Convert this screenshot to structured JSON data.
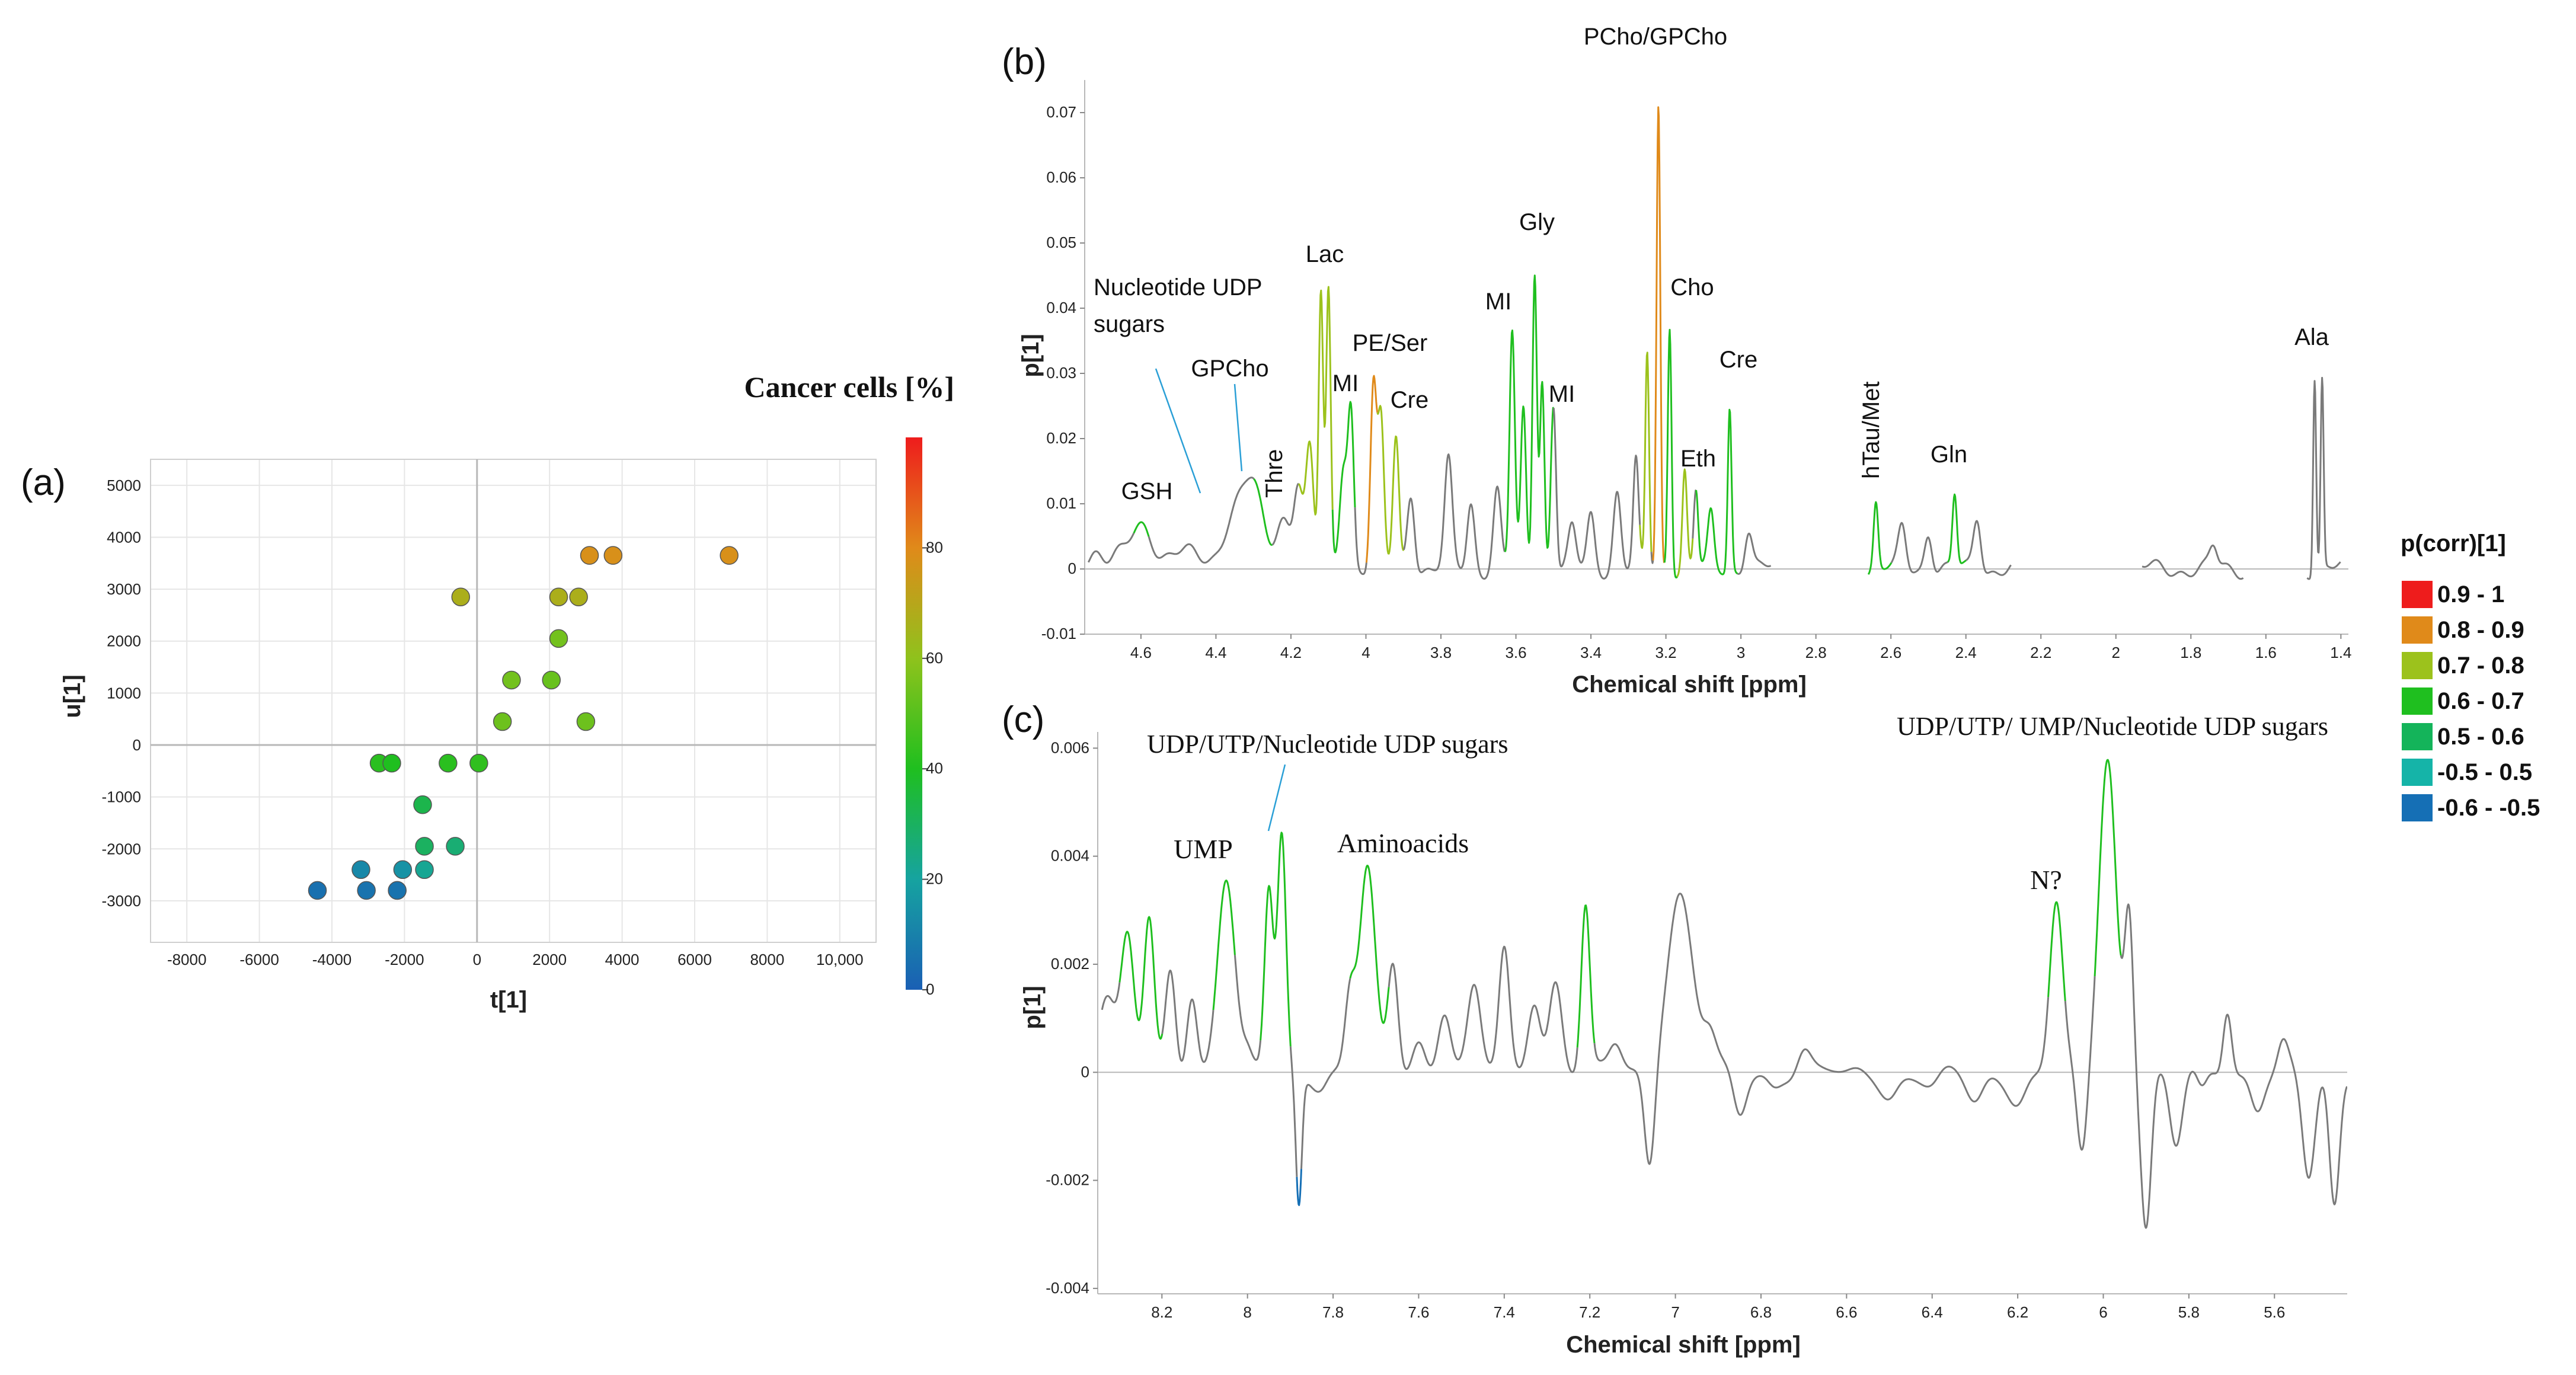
{
  "colors": {
    "gray": "#7a7a7a",
    "grid": "#e6e6e6",
    "axis": "#b8b8b8",
    "bins": [
      "#ee1c1c",
      "#e08a1a",
      "#9cc21c",
      "#1fbf1f",
      "#14b45a",
      "#15b4a8",
      "#156fb5"
    ]
  },
  "colorbar": {
    "title": "Cancer cells [%]",
    "ticks": [
      "0",
      "20",
      "40",
      "60",
      "80"
    ],
    "tick_values": [
      0,
      20,
      40,
      60,
      80
    ],
    "range": [
      0,
      100
    ],
    "stops": [
      "#1a5fb4",
      "#16a3a0",
      "#1fbf1f",
      "#8fc21c",
      "#e08a1a",
      "#ee1c1c"
    ]
  },
  "legend": {
    "title": "p(corr)[1]",
    "items": [
      "0.9 - 1",
      "0.8 - 0.9",
      "0.7 - 0.8",
      "0.6 - 0.7",
      "0.5 - 0.6",
      "-0.5 - 0.5",
      "-0.6 - -0.5"
    ]
  },
  "chart_data": [
    {
      "panel": "(a)",
      "type": "scatter",
      "title": "",
      "xlabel": "t[1]",
      "ylabel": "u[1]",
      "xlim": [
        -9000,
        11000
      ],
      "ylim": [
        -3800,
        5500
      ],
      "xticks": [
        -8000,
        -6000,
        -4000,
        -2000,
        0,
        2000,
        4000,
        6000,
        8000,
        10000
      ],
      "xtick_labels": [
        "-8000",
        "-6000",
        "-4000",
        "-2000",
        "0",
        "2000",
        "4000",
        "6000",
        "8000",
        "10,000"
      ],
      "yticks": [
        -3000,
        -2000,
        -1000,
        0,
        1000,
        2000,
        3000,
        4000,
        5000
      ],
      "ytick_labels": [
        "-3000",
        "-2000",
        "-1000",
        "0",
        "1000",
        "2000",
        "3000",
        "4000",
        "5000"
      ],
      "grid": true,
      "points": [
        {
          "x": -4400,
          "y": -2800,
          "c": 5
        },
        {
          "x": -3050,
          "y": -2800,
          "c": 6
        },
        {
          "x": -2200,
          "y": -2800,
          "c": 5
        },
        {
          "x": -2200,
          "y": -2800,
          "c": 6
        },
        {
          "x": -3200,
          "y": -2400,
          "c": 12
        },
        {
          "x": -2050,
          "y": -2400,
          "c": 15
        },
        {
          "x": -1450,
          "y": -2400,
          "c": 22
        },
        {
          "x": -1450,
          "y": -1950,
          "c": 30
        },
        {
          "x": -600,
          "y": -1950,
          "c": 27
        },
        {
          "x": -1500,
          "y": -1150,
          "c": 33
        },
        {
          "x": -2700,
          "y": -350,
          "c": 42
        },
        {
          "x": -2350,
          "y": -350,
          "c": 40
        },
        {
          "x": -800,
          "y": -350,
          "c": 42
        },
        {
          "x": 50,
          "y": -350,
          "c": 43
        },
        {
          "x": 700,
          "y": 450,
          "c": 54
        },
        {
          "x": 3000,
          "y": 450,
          "c": 54
        },
        {
          "x": 950,
          "y": 1250,
          "c": 55
        },
        {
          "x": 2050,
          "y": 1250,
          "c": 53
        },
        {
          "x": 2250,
          "y": 2050,
          "c": 55
        },
        {
          "x": -450,
          "y": 2850,
          "c": 67
        },
        {
          "x": 2250,
          "y": 2850,
          "c": 67
        },
        {
          "x": 2800,
          "y": 2850,
          "c": 67
        },
        {
          "x": 3100,
          "y": 3650,
          "c": 78
        },
        {
          "x": 3750,
          "y": 3650,
          "c": 78
        },
        {
          "x": 6950,
          "y": 3650,
          "c": 78
        }
      ]
    },
    {
      "panel": "(b)",
      "type": "line",
      "xlabel": "Chemical shift [ppm]",
      "ylabel": "p[1]",
      "xlim": [
        4.75,
        1.38
      ],
      "ylim": [
        -0.01,
        0.075
      ],
      "xticks": [
        4.6,
        4.4,
        4.2,
        4.0,
        3.8,
        3.6,
        3.4,
        3.2,
        3.0,
        2.8,
        2.6,
        2.4,
        2.2,
        2.0,
        1.8,
        1.6,
        1.4
      ],
      "xtick_labels": [
        "4.6",
        "4.4",
        "4.2",
        "4",
        "3.8",
        "3.6",
        "3.4",
        "3.2",
        "3",
        "2.8",
        "2.6",
        "2.4",
        "2.2",
        "2",
        "1.8",
        "1.6",
        "1.4"
      ],
      "yticks": [
        -0.01,
        0,
        0.01,
        0.02,
        0.03,
        0.04,
        0.05,
        0.06,
        0.07
      ],
      "ytick_labels": [
        "-0.01",
        "0",
        "0.01",
        "0.02",
        "0.03",
        "0.04",
        "0.05",
        "0.06",
        "0.07"
      ],
      "segments": [
        [
          4.74,
          2.92
        ],
        [
          2.66,
          2.28
        ],
        [
          1.93,
          1.66
        ],
        [
          1.49,
          1.4
        ]
      ],
      "peaks": [
        {
          "x": 4.72,
          "y": 0.003,
          "w": 0.02
        },
        {
          "x": 4.67,
          "y": 0.002,
          "w": 0.02
        },
        {
          "x": 4.6,
          "y": 0.006,
          "w": 0.03
        },
        {
          "x": 4.5,
          "y": 0.003,
          "w": 0.04
        },
        {
          "x": 4.35,
          "y": 0.009,
          "w": 0.03
        },
        {
          "x": 4.3,
          "y": 0.011,
          "w": 0.025
        },
        {
          "x": 4.22,
          "y": 0.008,
          "w": 0.02
        },
        {
          "x": 4.18,
          "y": 0.013,
          "w": 0.012
        },
        {
          "x": 4.15,
          "y": 0.018,
          "w": 0.01
        },
        {
          "x": 4.12,
          "y": 0.042,
          "w": 0.006
        },
        {
          "x": 4.1,
          "y": 0.042,
          "w": 0.006
        },
        {
          "x": 4.06,
          "y": 0.016,
          "w": 0.01
        },
        {
          "x": 4.04,
          "y": 0.024,
          "w": 0.008
        },
        {
          "x": 3.98,
          "y": 0.028,
          "w": 0.008
        },
        {
          "x": 3.96,
          "y": 0.022,
          "w": 0.008
        },
        {
          "x": 3.92,
          "y": 0.02,
          "w": 0.008
        },
        {
          "x": 3.88,
          "y": 0.012,
          "w": 0.01
        },
        {
          "x": 3.78,
          "y": 0.016,
          "w": 0.01
        },
        {
          "x": 3.72,
          "y": 0.01,
          "w": 0.01
        },
        {
          "x": 3.65,
          "y": 0.012,
          "w": 0.01
        },
        {
          "x": 3.61,
          "y": 0.036,
          "w": 0.007
        },
        {
          "x": 3.58,
          "y": 0.024,
          "w": 0.007
        },
        {
          "x": 3.55,
          "y": 0.046,
          "w": 0.006
        },
        {
          "x": 3.53,
          "y": 0.029,
          "w": 0.006
        },
        {
          "x": 3.5,
          "y": 0.026,
          "w": 0.007
        },
        {
          "x": 3.45,
          "y": 0.006,
          "w": 0.01
        },
        {
          "x": 3.4,
          "y": 0.008,
          "w": 0.01
        },
        {
          "x": 3.33,
          "y": 0.012,
          "w": 0.01
        },
        {
          "x": 3.28,
          "y": 0.016,
          "w": 0.007
        },
        {
          "x": 3.25,
          "y": 0.033,
          "w": 0.005
        },
        {
          "x": 3.22,
          "y": 0.071,
          "w": 0.005
        },
        {
          "x": 3.19,
          "y": 0.038,
          "w": 0.005
        },
        {
          "x": 3.15,
          "y": 0.015,
          "w": 0.006
        },
        {
          "x": 3.12,
          "y": 0.012,
          "w": 0.006
        },
        {
          "x": 3.08,
          "y": 0.008,
          "w": 0.008
        },
        {
          "x": 3.03,
          "y": 0.025,
          "w": 0.005
        },
        {
          "x": 2.98,
          "y": 0.006,
          "w": 0.01
        },
        {
          "x": 2.64,
          "y": 0.01,
          "w": 0.006
        },
        {
          "x": 2.57,
          "y": 0.006,
          "w": 0.01
        },
        {
          "x": 2.5,
          "y": 0.006,
          "w": 0.01
        },
        {
          "x": 2.43,
          "y": 0.011,
          "w": 0.006
        },
        {
          "x": 2.37,
          "y": 0.008,
          "w": 0.01
        },
        {
          "x": 1.74,
          "y": 0.003,
          "w": 0.01
        },
        {
          "x": 1.47,
          "y": 0.03,
          "w": 0.004
        },
        {
          "x": 1.45,
          "y": 0.029,
          "w": 0.004
        }
      ],
      "colored": [
        {
          "r": [
            4.62,
            4.58
          ],
          "bin": 3
        },
        {
          "r": [
            4.3,
            4.25
          ],
          "bin": 3
        },
        {
          "r": [
            4.18,
            4.13
          ],
          "bin": 2
        },
        {
          "r": [
            4.13,
            4.09
          ],
          "bin": 2
        },
        {
          "r": [
            4.09,
            4.03
          ],
          "bin": 3
        },
        {
          "r": [
            4.0,
            3.97
          ],
          "bin": 1
        },
        {
          "r": [
            3.97,
            3.9
          ],
          "bin": 2
        },
        {
          "r": [
            3.63,
            3.5
          ],
          "bin": 3
        },
        {
          "r": [
            3.27,
            3.24
          ],
          "bin": 2
        },
        {
          "r": [
            3.235,
            3.205
          ],
          "bin": 1
        },
        {
          "r": [
            3.22,
            3.215
          ],
          "bin": 0
        },
        {
          "r": [
            3.205,
            3.17
          ],
          "bin": 3
        },
        {
          "r": [
            3.17,
            3.13
          ],
          "bin": 2
        },
        {
          "r": [
            3.12,
            3.01
          ],
          "bin": 3
        },
        {
          "r": [
            2.66,
            2.6
          ],
          "bin": 3
        },
        {
          "r": [
            2.45,
            2.4
          ],
          "bin": 3
        }
      ],
      "labels": [
        "PCho/GPCho",
        "Lac",
        "Gly",
        "Cho",
        "Nucleotide UDP",
        "sugars",
        "MI",
        "PE/Ser",
        "GPCho",
        "MI",
        "Cre",
        "MI",
        "Cre",
        "Thre",
        "Eth",
        "hTau/Met",
        "Gln",
        "GSH",
        "Ala"
      ]
    },
    {
      "panel": "(c)",
      "type": "line",
      "xlabel": "Chemical shift [ppm]",
      "ylabel": "p[1]",
      "xlim": [
        8.35,
        5.43
      ],
      "ylim": [
        -0.0041,
        0.0063
      ],
      "xticks": [
        8.2,
        8.0,
        7.8,
        7.6,
        7.4,
        7.2,
        7.0,
        6.8,
        6.6,
        6.4,
        6.2,
        6.0,
        5.8,
        5.6
      ],
      "xtick_labels": [
        "8.2",
        "8",
        "7.8",
        "7.6",
        "7.4",
        "7.2",
        "7",
        "6.8",
        "6.6",
        "6.4",
        "6.2",
        "6",
        "5.8",
        "5.6"
      ],
      "yticks": [
        -0.004,
        -0.002,
        0,
        0.002,
        0.004,
        0.006
      ],
      "ytick_labels": [
        "-0.004",
        "-0.002",
        "0",
        "0.002",
        "0.004",
        "0.006"
      ],
      "segments": [
        [
          8.34,
          5.43
        ]
      ],
      "peaks": [
        {
          "x": 8.33,
          "y": 0.0014,
          "w": 0.02
        },
        {
          "x": 8.28,
          "y": 0.0024,
          "w": 0.015
        },
        {
          "x": 8.23,
          "y": 0.0028,
          "w": 0.012
        },
        {
          "x": 8.18,
          "y": 0.0019,
          "w": 0.012
        },
        {
          "x": 8.13,
          "y": 0.0015,
          "w": 0.012
        },
        {
          "x": 8.05,
          "y": 0.0036,
          "w": 0.02
        },
        {
          "x": 8.0,
          "y": 0.0002,
          "w": 0.01
        },
        {
          "x": 7.95,
          "y": 0.0034,
          "w": 0.01
        },
        {
          "x": 7.92,
          "y": 0.0044,
          "w": 0.01
        },
        {
          "x": 7.88,
          "y": -0.0024,
          "w": 0.007
        },
        {
          "x": 7.83,
          "y": -0.0002,
          "w": 0.015
        },
        {
          "x": 7.76,
          "y": 0.0014,
          "w": 0.012
        },
        {
          "x": 7.72,
          "y": 0.0037,
          "w": 0.018
        },
        {
          "x": 7.66,
          "y": 0.002,
          "w": 0.012
        },
        {
          "x": 7.6,
          "y": 0.0006,
          "w": 0.015
        },
        {
          "x": 7.54,
          "y": 0.0012,
          "w": 0.015
        },
        {
          "x": 7.47,
          "y": 0.0015,
          "w": 0.015
        },
        {
          "x": 7.4,
          "y": 0.0022,
          "w": 0.012
        },
        {
          "x": 7.33,
          "y": 0.0014,
          "w": 0.015
        },
        {
          "x": 7.28,
          "y": 0.0017,
          "w": 0.015
        },
        {
          "x": 7.21,
          "y": 0.003,
          "w": 0.01
        },
        {
          "x": 7.14,
          "y": 0.0005,
          "w": 0.015
        },
        {
          "x": 7.06,
          "y": -0.0018,
          "w": 0.012
        },
        {
          "x": 6.99,
          "y": 0.0033,
          "w": 0.03
        },
        {
          "x": 6.92,
          "y": 0.0006,
          "w": 0.015
        },
        {
          "x": 6.85,
          "y": -0.0008,
          "w": 0.015
        },
        {
          "x": 6.77,
          "y": -0.0002,
          "w": 0.015
        },
        {
          "x": 6.7,
          "y": 0.0004,
          "w": 0.015
        },
        {
          "x": 6.6,
          "y": -0.0001,
          "w": 0.02
        },
        {
          "x": 6.5,
          "y": -0.0004,
          "w": 0.02
        },
        {
          "x": 6.4,
          "y": -0.0003,
          "w": 0.02
        },
        {
          "x": 6.3,
          "y": -0.0006,
          "w": 0.02
        },
        {
          "x": 6.2,
          "y": -0.0005,
          "w": 0.02
        },
        {
          "x": 6.11,
          "y": 0.0031,
          "w": 0.015
        },
        {
          "x": 6.05,
          "y": -0.0016,
          "w": 0.012
        },
        {
          "x": 5.99,
          "y": 0.0058,
          "w": 0.02
        },
        {
          "x": 5.94,
          "y": 0.003,
          "w": 0.01
        },
        {
          "x": 5.9,
          "y": -0.0028,
          "w": 0.012
        },
        {
          "x": 5.83,
          "y": -0.0014,
          "w": 0.015
        },
        {
          "x": 5.77,
          "y": -0.0004,
          "w": 0.012
        },
        {
          "x": 5.71,
          "y": 0.0012,
          "w": 0.01
        },
        {
          "x": 5.64,
          "y": -0.0006,
          "w": 0.015
        },
        {
          "x": 5.58,
          "y": 0.0005,
          "w": 0.012
        },
        {
          "x": 5.52,
          "y": -0.002,
          "w": 0.015
        },
        {
          "x": 5.46,
          "y": -0.0025,
          "w": 0.012
        }
      ],
      "colored": [
        {
          "r": [
            8.3,
            8.2
          ],
          "bin": 3
        },
        {
          "r": [
            8.08,
            8.03
          ],
          "bin": 3
        },
        {
          "r": [
            7.97,
            7.9
          ],
          "bin": 3
        },
        {
          "r": [
            7.885,
            7.875
          ],
          "bin": 6
        },
        {
          "r": [
            7.76,
            7.67
          ],
          "bin": 3
        },
        {
          "r": [
            7.23,
            7.19
          ],
          "bin": 3
        },
        {
          "r": [
            6.13,
            6.09
          ],
          "bin": 3
        },
        {
          "r": [
            6.02,
            5.96
          ],
          "bin": 3
        }
      ],
      "labels": [
        "UDP/UTP/Nucleotide UDP sugars",
        "UDP/UTP/ UMP/Nucleotide UDP sugars",
        "UMP",
        "Aminoacids",
        "N?"
      ]
    }
  ]
}
